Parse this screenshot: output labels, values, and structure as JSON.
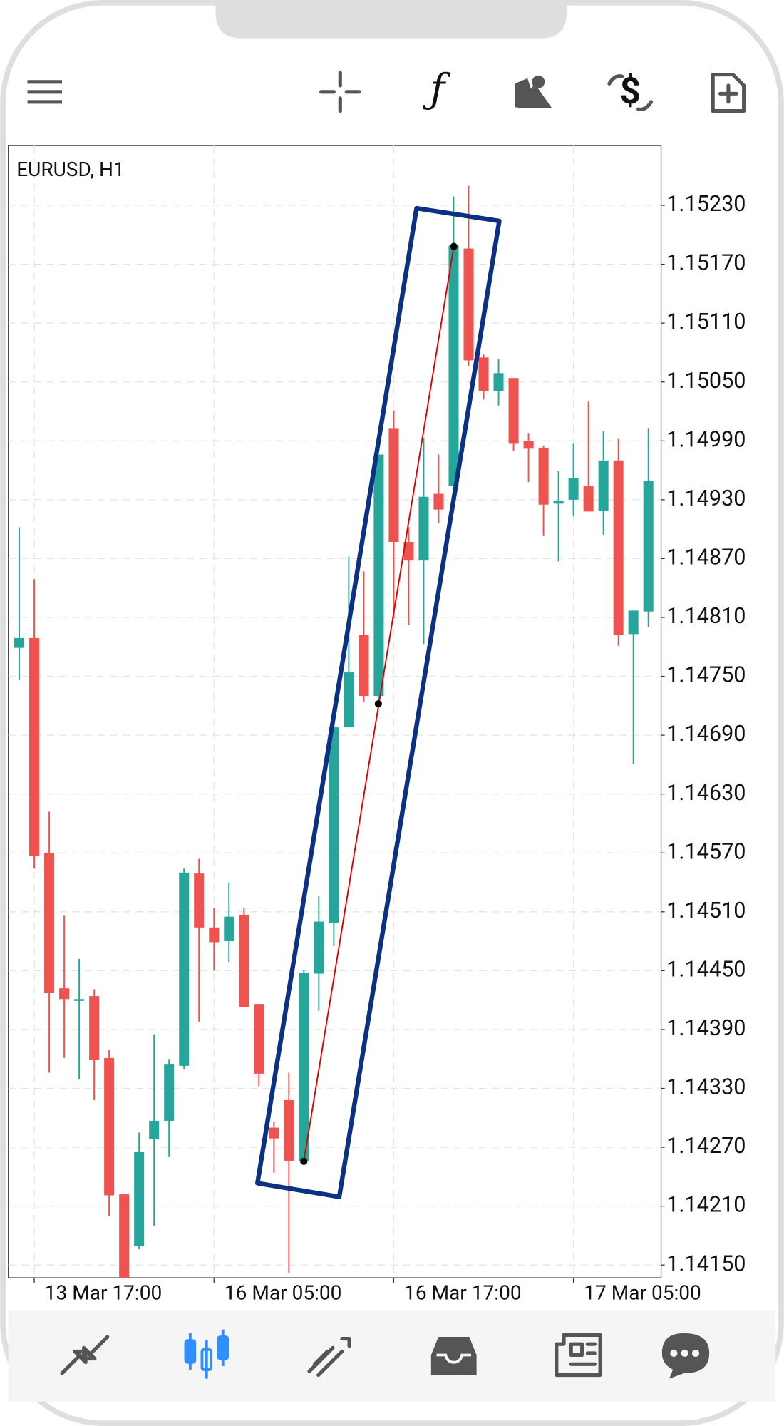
{
  "chart_data": {
    "type": "candlestick",
    "title": "EURUSD, H1",
    "categories": [
      null,
      "13 Mar 17:00",
      null,
      null,
      null,
      null,
      null,
      null,
      null,
      null,
      null,
      null,
      null,
      "16 Mar 05:00",
      null,
      null,
      null,
      null,
      null,
      null,
      null,
      null,
      null,
      null,
      null,
      "16 Mar 17:00",
      null,
      null,
      null,
      null,
      null,
      null,
      null,
      null,
      null,
      null,
      null,
      "17 Mar 05:00",
      null,
      null,
      null,
      null,
      null
    ],
    "open": [
      1.14779,
      1.14789,
      1.1457,
      1.14432,
      1.1442,
      1.14424,
      1.14361,
      1.14222,
      1.14169,
      1.14278,
      1.14297,
      1.14353,
      1.14549,
      1.14494,
      1.1448,
      1.14507,
      1.14416,
      1.1429,
      1.14318,
      1.14256,
      1.14447,
      1.14499,
      1.14698,
      1.14792,
      1.1473,
      1.15003,
      1.14887,
      1.14868,
      1.14936,
      1.14944,
      1.15186,
      1.15075,
      1.15041,
      1.15054,
      1.1499,
      1.14983,
      1.14926,
      1.1493,
      1.14944,
      1.14919,
      1.1497,
      1.14793,
      1.14816
    ],
    "high": [
      1.14902,
      1.14849,
      1.14612,
      1.14506,
      1.14462,
      1.14431,
      1.14369,
      1.14222,
      1.14285,
      1.14385,
      1.1436,
      1.14554,
      1.14564,
      1.14514,
      1.1454,
      1.14514,
      1.14416,
      1.14296,
      1.14346,
      1.14451,
      1.14526,
      1.14707,
      1.14872,
      1.14857,
      1.14976,
      1.15021,
      1.14902,
      1.14993,
      1.14976,
      1.15239,
      1.1525,
      1.15078,
      1.15073,
      1.15054,
      1.14998,
      1.14985,
      1.14959,
      1.14987,
      1.1503,
      1.15,
      1.14992,
      1.14817,
      1.15003
    ],
    "low": [
      1.14746,
      1.14554,
      1.14346,
      1.14361,
      1.14339,
      1.14318,
      1.142,
      1.14135,
      1.14166,
      1.1419,
      1.1426,
      1.1435,
      1.14398,
      1.1445,
      1.14459,
      1.14413,
      1.14332,
      1.14244,
      1.14142,
      1.14256,
      1.14409,
      1.14475,
      1.14698,
      1.14724,
      1.14721,
      1.14809,
      1.14802,
      1.14783,
      1.14906,
      1.14944,
      1.15066,
      1.15032,
      1.15026,
      1.1498,
      1.14948,
      1.14893,
      1.14867,
      1.14913,
      1.14918,
      1.14894,
      1.14781,
      1.14661,
      1.148
    ],
    "close": [
      1.14789,
      1.14567,
      1.14427,
      1.14421,
      1.14421,
      1.14359,
      1.14221,
      1.14135,
      1.14265,
      1.14297,
      1.14355,
      1.1455,
      1.14494,
      1.14479,
      1.14505,
      1.14413,
      1.14345,
      1.14279,
      1.14256,
      1.14448,
      1.145,
      1.14698,
      1.14754,
      1.1473,
      1.14976,
      1.14887,
      1.14868,
      1.14933,
      1.1492,
      1.15189,
      1.15072,
      1.15041,
      1.15059,
      1.14987,
      1.14982,
      1.14925,
      1.14929,
      1.14952,
      1.14918,
      1.1497,
      1.14792,
      1.14817,
      1.14949
    ],
    "up_color": "#26a69a",
    "down_color": "#ef5350",
    "ylim": [
      1.14137,
      1.15291
    ],
    "yticks": [
      {
        "value": 1.1415,
        "label": "1.14150"
      },
      {
        "value": 1.1421,
        "label": "1.14210"
      },
      {
        "value": 1.1427,
        "label": "1.14270"
      },
      {
        "value": 1.1433,
        "label": "1.14330"
      },
      {
        "value": 1.1439,
        "label": "1.14390"
      },
      {
        "value": 1.1445,
        "label": "1.14450"
      },
      {
        "value": 1.1451,
        "label": "1.14510"
      },
      {
        "value": 1.1457,
        "label": "1.14570"
      },
      {
        "value": 1.1463,
        "label": "1.14630"
      },
      {
        "value": 1.1469,
        "label": "1.14690"
      },
      {
        "value": 1.1475,
        "label": "1.14750"
      },
      {
        "value": 1.1481,
        "label": "1.14810"
      },
      {
        "value": 1.1487,
        "label": "1.14870"
      },
      {
        "value": 1.1493,
        "label": "1.14930"
      },
      {
        "value": 1.1499,
        "label": "1.14990"
      },
      {
        "value": 1.1505,
        "label": "1.15050"
      },
      {
        "value": 1.1511,
        "label": "1.15110"
      },
      {
        "value": 1.1517,
        "label": "1.15170"
      },
      {
        "value": 1.1523,
        "label": "1.15230"
      }
    ],
    "grid": true
  }
}
